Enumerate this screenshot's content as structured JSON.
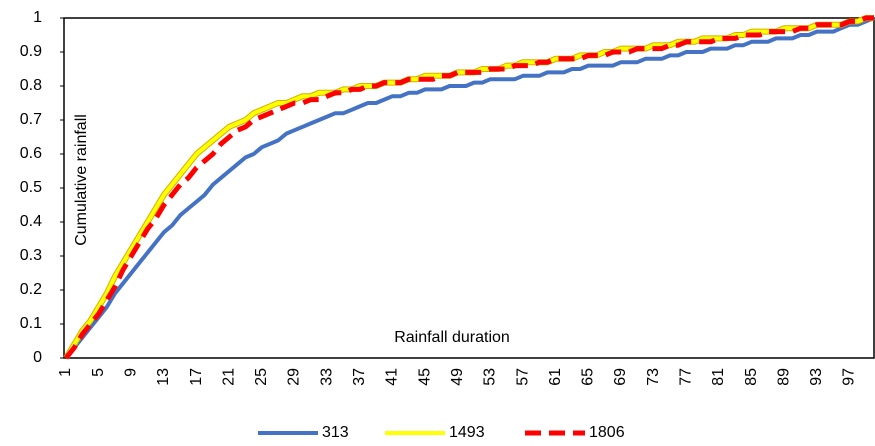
{
  "chart_data": {
    "type": "line",
    "y_label": "Cumulative rainfall",
    "x_label": "Rainfall duration",
    "categories": [
      1,
      null,
      null,
      null,
      5,
      null,
      null,
      null,
      9,
      null,
      null,
      null,
      13,
      null,
      null,
      null,
      17,
      null,
      null,
      null,
      21,
      null,
      null,
      null,
      25,
      null,
      null,
      null,
      29,
      null,
      null,
      null,
      33,
      null,
      null,
      null,
      37,
      null,
      null,
      null,
      41,
      null,
      null,
      null,
      45,
      null,
      null,
      null,
      49,
      null,
      null,
      null,
      53,
      null,
      null,
      null,
      57,
      null,
      null,
      null,
      61,
      null,
      null,
      null,
      65,
      null,
      null,
      null,
      69,
      null,
      null,
      null,
      73,
      null,
      null,
      null,
      77,
      null,
      null,
      null,
      81,
      null,
      null,
      null,
      85,
      null,
      null,
      null,
      89,
      null,
      null,
      null,
      93,
      null,
      null,
      null,
      97,
      null,
      null,
      null
    ],
    "series": [
      {
        "name": "313",
        "color": "#4472c4",
        "dash": false,
        "values": [
          0,
          0.03,
          0.06,
          0.09,
          0.12,
          0.15,
          0.19,
          0.22,
          0.25,
          0.28,
          0.31,
          0.34,
          0.37,
          0.39,
          0.42,
          0.44,
          0.46,
          0.48,
          0.51,
          0.53,
          0.55,
          0.57,
          0.59,
          0.6,
          0.62,
          0.63,
          0.64,
          0.66,
          0.67,
          0.68,
          0.69,
          0.7,
          0.71,
          0.72,
          0.72,
          0.73,
          0.74,
          0.75,
          0.75,
          0.76,
          0.77,
          0.77,
          0.78,
          0.78,
          0.79,
          0.79,
          0.79,
          0.8,
          0.8,
          0.8,
          0.81,
          0.81,
          0.82,
          0.82,
          0.82,
          0.82,
          0.83,
          0.83,
          0.83,
          0.84,
          0.84,
          0.84,
          0.85,
          0.85,
          0.86,
          0.86,
          0.86,
          0.86,
          0.87,
          0.87,
          0.87,
          0.88,
          0.88,
          0.88,
          0.89,
          0.89,
          0.9,
          0.9,
          0.9,
          0.91,
          0.91,
          0.91,
          0.92,
          0.92,
          0.93,
          0.93,
          0.93,
          0.94,
          0.94,
          0.94,
          0.95,
          0.95,
          0.96,
          0.96,
          0.96,
          0.97,
          0.98,
          0.98,
          0.99,
          1
        ]
      },
      {
        "name": "1493",
        "color": "#ffff00",
        "dash": false,
        "values": [
          0,
          0.04,
          0.08,
          0.11,
          0.15,
          0.19,
          0.24,
          0.28,
          0.32,
          0.36,
          0.4,
          0.44,
          0.48,
          0.51,
          0.54,
          0.57,
          0.6,
          0.62,
          0.64,
          0.66,
          0.68,
          0.69,
          0.7,
          0.72,
          0.73,
          0.74,
          0.75,
          0.75,
          0.76,
          0.77,
          0.77,
          0.78,
          0.78,
          0.78,
          0.79,
          0.79,
          0.8,
          0.8,
          0.8,
          0.81,
          0.81,
          0.81,
          0.82,
          0.82,
          0.83,
          0.83,
          0.83,
          0.83,
          0.84,
          0.84,
          0.84,
          0.85,
          0.85,
          0.85,
          0.86,
          0.86,
          0.87,
          0.87,
          0.87,
          0.87,
          0.88,
          0.88,
          0.88,
          0.89,
          0.89,
          0.89,
          0.9,
          0.9,
          0.91,
          0.91,
          0.91,
          0.91,
          0.92,
          0.92,
          0.92,
          0.93,
          0.93,
          0.93,
          0.94,
          0.94,
          0.94,
          0.94,
          0.95,
          0.95,
          0.96,
          0.96,
          0.96,
          0.96,
          0.97,
          0.97,
          0.97,
          0.97,
          0.98,
          0.98,
          0.98,
          0.98,
          0.99,
          0.99,
          1,
          1
        ]
      },
      {
        "name": "1806",
        "color": "#ff0000",
        "dash": true,
        "values": [
          0,
          0.03,
          0.07,
          0.1,
          0.13,
          0.17,
          0.21,
          0.26,
          0.3,
          0.34,
          0.38,
          0.41,
          0.45,
          0.48,
          0.51,
          0.53,
          0.56,
          0.58,
          0.6,
          0.63,
          0.65,
          0.67,
          0.68,
          0.7,
          0.71,
          0.72,
          0.73,
          0.74,
          0.75,
          0.75,
          0.76,
          0.76,
          0.77,
          0.78,
          0.78,
          0.79,
          0.79,
          0.8,
          0.8,
          0.81,
          0.81,
          0.81,
          0.82,
          0.82,
          0.82,
          0.82,
          0.83,
          0.83,
          0.84,
          0.84,
          0.84,
          0.84,
          0.85,
          0.85,
          0.85,
          0.86,
          0.86,
          0.86,
          0.87,
          0.87,
          0.88,
          0.88,
          0.88,
          0.88,
          0.89,
          0.89,
          0.89,
          0.9,
          0.9,
          0.9,
          0.91,
          0.91,
          0.91,
          0.91,
          0.92,
          0.92,
          0.93,
          0.93,
          0.93,
          0.93,
          0.94,
          0.94,
          0.94,
          0.95,
          0.95,
          0.95,
          0.96,
          0.96,
          0.96,
          0.96,
          0.97,
          0.97,
          0.98,
          0.98,
          0.98,
          0.98,
          0.99,
          0.99,
          1,
          1
        ]
      }
    ],
    "ylim": [
      0,
      1
    ],
    "yticks": [
      0,
      0.1,
      0.2,
      0.3,
      0.4,
      0.5,
      0.6,
      0.7,
      0.8,
      0.9,
      1
    ],
    "grid": false,
    "legend": "bottom"
  }
}
